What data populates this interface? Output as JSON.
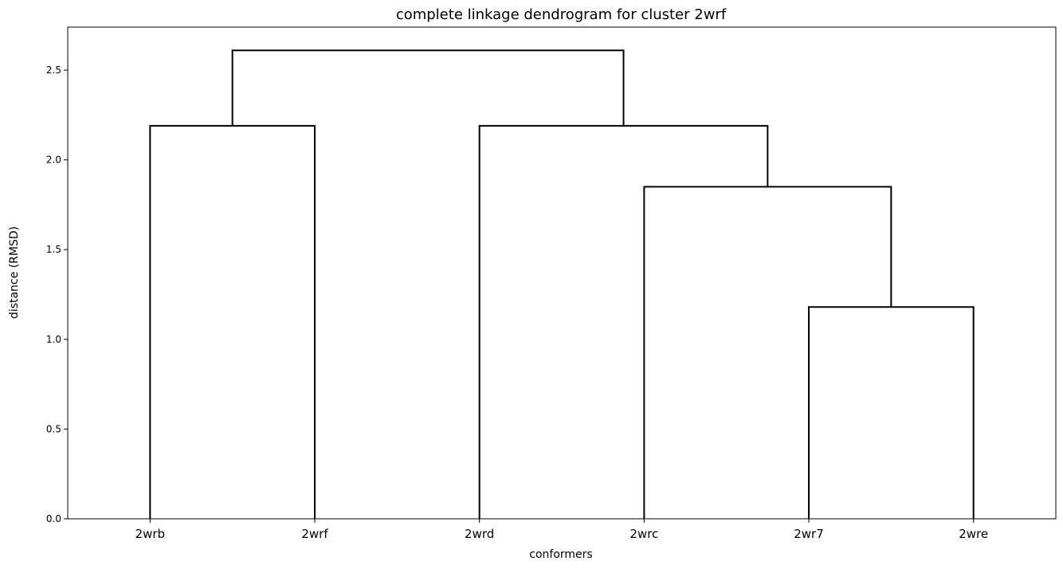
{
  "chart_data": {
    "type": "dendrogram",
    "title": "complete linkage dendrogram for cluster 2wrf",
    "xlabel": "conformers",
    "ylabel": "distance (RMSD)",
    "ylim": [
      0,
      2.74
    ],
    "yticks": [
      "0.0",
      "0.5",
      "1.0",
      "1.5",
      "2.0",
      "2.5"
    ],
    "ytick_values": [
      0,
      0.5,
      1.0,
      1.5,
      2.0,
      2.5
    ],
    "leaves": [
      "2wrb",
      "2wrf",
      "2wrd",
      "2wrc",
      "2wr7",
      "2wre"
    ],
    "merges": [
      {
        "left": "2wr7",
        "right": "2wre",
        "distance": 1.18
      },
      {
        "left": "2wrc",
        "right": "(2wr7, 2wre)",
        "distance": 1.85
      },
      {
        "left": "2wrd",
        "right": "(2wrc, 2wr7, 2wre)",
        "distance": 2.19
      },
      {
        "left": "2wrb",
        "right": "2wrf",
        "distance": 2.19
      },
      {
        "left": "(2wrb, 2wrf)",
        "right": "(2wrd, 2wrc, 2wr7, 2wre)",
        "distance": 2.61
      }
    ],
    "links": [
      {
        "i": 4,
        "j": 5,
        "d": 1.18
      },
      {
        "i": 3,
        "j": 4.5,
        "d": 1.85
      },
      {
        "i": 2,
        "j": 3.75,
        "d": 2.19
      },
      {
        "i": 0,
        "j": 1,
        "d": 2.19
      },
      {
        "i": 0.5,
        "j": 2.875,
        "d": 2.61
      }
    ],
    "link_color": "#000000",
    "grid": false
  }
}
